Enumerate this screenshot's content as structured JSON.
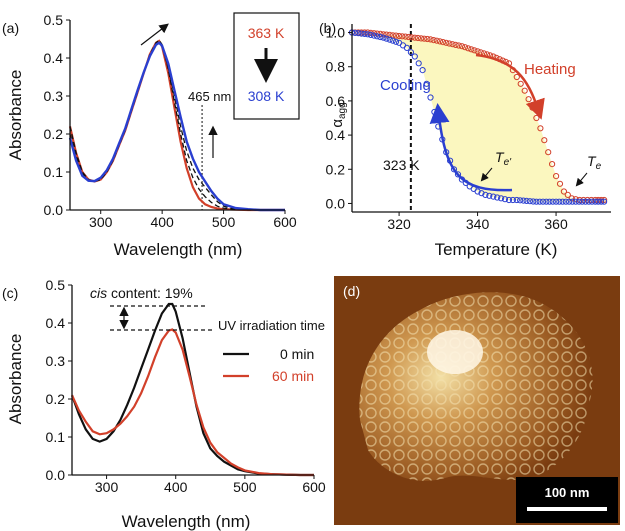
{
  "colors": {
    "red": "#d2402a",
    "blue": "#2a3fd0",
    "black": "#111111",
    "fill": "#fbf7bf",
    "afm_bg": "#7a3c10"
  },
  "panels": {
    "a": {
      "label": "(a)",
      "temp_hot": "363 K",
      "temp_cold": "308 K",
      "arrow": "down-arrow-icon",
      "marker": "465 nm",
      "marker_x": 465
    },
    "b": {
      "label": "(b)",
      "heating": "Heating",
      "cooling": "Cooling",
      "te_prime": "T",
      "te_prime_sub": "e'",
      "te": "T",
      "te_sub": "e",
      "dash_label": "323 K",
      "dash_x": 323
    },
    "c": {
      "label": "(c)",
      "cis_text": "cis",
      "cis_rest": " content: 19%",
      "legend_title": "UV irradiation time"
    },
    "d": {
      "label": "(d)",
      "scale": "100 nm"
    }
  },
  "chart_data": [
    {
      "type": "line",
      "panel": "a",
      "xlabel": "Wavelength (nm)",
      "ylabel": "Absorbance",
      "xlim": [
        250,
        600
      ],
      "ylim": [
        0,
        0.5
      ],
      "xticks": [
        300,
        400,
        500,
        600
      ],
      "yticks": [
        0.0,
        0.1,
        0.2,
        0.3,
        0.4,
        0.5
      ],
      "x": [
        250,
        260,
        270,
        280,
        290,
        300,
        310,
        320,
        330,
        340,
        350,
        360,
        370,
        380,
        390,
        395,
        400,
        410,
        420,
        430,
        440,
        450,
        460,
        470,
        480,
        490,
        500,
        520,
        540,
        560,
        580,
        600
      ],
      "series": [
        {
          "values": [
            0.22,
            0.15,
            0.1,
            0.08,
            0.075,
            0.08,
            0.1,
            0.13,
            0.17,
            0.21,
            0.26,
            0.31,
            0.36,
            0.41,
            0.44,
            0.445,
            0.43,
            0.36,
            0.27,
            0.18,
            0.11,
            0.06,
            0.03,
            0.015,
            0.008,
            0.004,
            0.002,
            0.001,
            0.0,
            0.0,
            0.0,
            0.0
          ]
        },
        {
          "values": [
            0.22,
            0.15,
            0.1,
            0.08,
            0.075,
            0.08,
            0.1,
            0.13,
            0.17,
            0.21,
            0.26,
            0.31,
            0.36,
            0.41,
            0.44,
            0.447,
            0.435,
            0.37,
            0.285,
            0.2,
            0.13,
            0.085,
            0.055,
            0.035,
            0.02,
            0.01,
            0.005,
            0.002,
            0.0,
            0.0,
            0.0,
            0.0
          ]
        },
        {
          "values": [
            0.2,
            0.14,
            0.095,
            0.078,
            0.075,
            0.082,
            0.102,
            0.132,
            0.172,
            0.212,
            0.262,
            0.312,
            0.36,
            0.405,
            0.435,
            0.44,
            0.43,
            0.375,
            0.3,
            0.22,
            0.155,
            0.11,
            0.08,
            0.06,
            0.04,
            0.022,
            0.01,
            0.003,
            0.001,
            0.0,
            0.0,
            0.0
          ]
        },
        {
          "values": [
            0.19,
            0.13,
            0.09,
            0.077,
            0.076,
            0.085,
            0.105,
            0.135,
            0.175,
            0.215,
            0.265,
            0.315,
            0.362,
            0.405,
            0.435,
            0.44,
            0.432,
            0.385,
            0.315,
            0.245,
            0.18,
            0.135,
            0.1,
            0.075,
            0.05,
            0.03,
            0.015,
            0.005,
            0.002,
            0.0,
            0.0,
            0.0
          ]
        }
      ]
    },
    {
      "type": "scatter",
      "panel": "b",
      "xlabel": "Temperature (K)",
      "ylabel": "αagg",
      "xlim": [
        308,
        374
      ],
      "ylim": [
        -0.05,
        1.05
      ],
      "xticks": [
        320,
        340,
        360
      ],
      "yticks": [
        0.0,
        0.2,
        0.4,
        0.6,
        0.8,
        1.0
      ],
      "series": [
        {
          "x": [
            308,
            312,
            316,
            320,
            324,
            328,
            332,
            336,
            340,
            344,
            348,
            350,
            352,
            354,
            356,
            358,
            360,
            362,
            364,
            366,
            368,
            370,
            373
          ],
          "values": [
            1.0,
            1.0,
            0.99,
            0.98,
            0.97,
            0.96,
            0.94,
            0.92,
            0.89,
            0.86,
            0.82,
            0.74,
            0.66,
            0.56,
            0.44,
            0.3,
            0.16,
            0.07,
            0.03,
            0.02,
            0.02,
            0.02,
            0.02
          ]
        },
        {
          "x": [
            308,
            312,
            316,
            320,
            322,
            324,
            326,
            328,
            330,
            332,
            334,
            336,
            338,
            340,
            342,
            344,
            346,
            348,
            350,
            355,
            360,
            365,
            370,
            373
          ],
          "values": [
            1.0,
            0.99,
            0.97,
            0.94,
            0.91,
            0.86,
            0.78,
            0.62,
            0.45,
            0.3,
            0.2,
            0.14,
            0.1,
            0.07,
            0.05,
            0.04,
            0.03,
            0.02,
            0.02,
            0.01,
            0.01,
            0.01,
            0.01,
            0.01
          ]
        }
      ]
    },
    {
      "type": "line",
      "panel": "c",
      "xlabel": "Wavelength (nm)",
      "ylabel": "Absorbance",
      "xlim": [
        250,
        600
      ],
      "ylim": [
        0,
        0.5
      ],
      "xticks": [
        300,
        400,
        500,
        600
      ],
      "yticks": [
        0.0,
        0.1,
        0.2,
        0.3,
        0.4,
        0.5
      ],
      "x": [
        250,
        260,
        270,
        280,
        290,
        300,
        310,
        320,
        330,
        340,
        350,
        360,
        370,
        380,
        390,
        395,
        400,
        410,
        420,
        430,
        440,
        450,
        460,
        470,
        480,
        490,
        500,
        520,
        540,
        560,
        580,
        600
      ],
      "series": [
        {
          "name": "0 min",
          "values": [
            0.21,
            0.16,
            0.12,
            0.095,
            0.088,
            0.095,
            0.115,
            0.145,
            0.185,
            0.23,
            0.28,
            0.33,
            0.38,
            0.425,
            0.45,
            0.45,
            0.43,
            0.36,
            0.27,
            0.18,
            0.11,
            0.07,
            0.05,
            0.035,
            0.025,
            0.015,
            0.01,
            0.004,
            0.002,
            0.001,
            0.0,
            0.0
          ]
        },
        {
          "name": "60 min",
          "values": [
            0.21,
            0.17,
            0.14,
            0.115,
            0.107,
            0.11,
            0.12,
            0.135,
            0.155,
            0.18,
            0.215,
            0.26,
            0.31,
            0.355,
            0.38,
            0.383,
            0.375,
            0.33,
            0.26,
            0.185,
            0.125,
            0.085,
            0.06,
            0.045,
            0.03,
            0.02,
            0.012,
            0.005,
            0.002,
            0.001,
            0.0,
            0.0
          ]
        }
      ]
    }
  ]
}
